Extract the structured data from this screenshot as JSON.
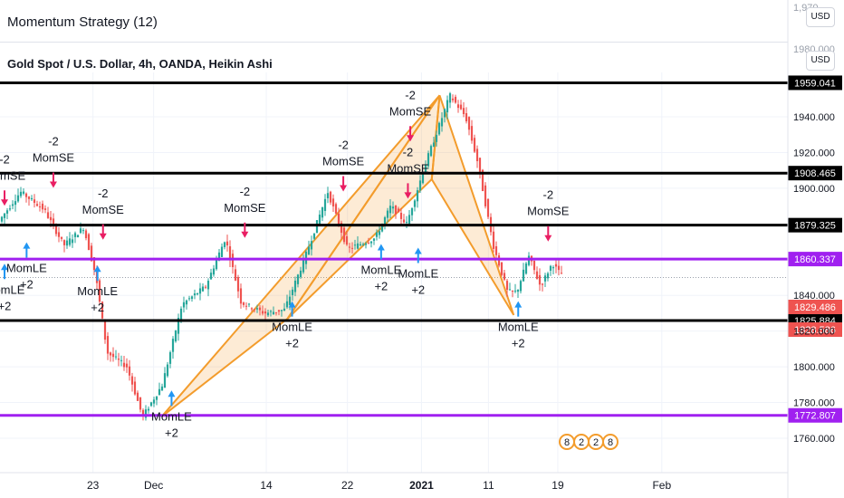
{
  "header": {
    "indicator_title": "Momentum Strategy (12)",
    "chart_title": "Gold Spot / U.S. Dollar, 4h, OANDA, Heikin Ashi",
    "currency_top": "USD",
    "currency_mid": "USD"
  },
  "colors": {
    "bull": "#26a69a",
    "bear": "#ef5350",
    "pattern": "#f39c2c",
    "purple": "#a020f0",
    "black_line": "#000000",
    "up_arrow": "#2196f3",
    "down_arrow": "#e91e63"
  },
  "chart_data": {
    "type": "candlestick",
    "title": "Gold Spot / U.S. Dollar, 4h, OANDA, Heikin Ashi",
    "y_axis": {
      "ticks": [
        1760,
        1780,
        1800,
        1820,
        1840,
        1900,
        1920,
        1940
      ],
      "tick_labels": [
        "1760.000",
        "1780.000",
        "1800.000",
        "1820.000",
        "1840.000",
        "1900.000",
        "1920.000",
        "1940.000"
      ],
      "range": [
        1746,
        1968
      ],
      "faded_labels": [
        "1,970",
        "1980.000"
      ]
    },
    "x_axis": {
      "labels": [
        "23",
        "Dec",
        "14",
        "22",
        "2021",
        "11",
        "19",
        "Feb"
      ],
      "positions": [
        0.118,
        0.195,
        0.338,
        0.441,
        0.535,
        0.62,
        0.708,
        0.84
      ]
    },
    "horizontal_levels": [
      {
        "value": 1959.041,
        "label": "1959.041",
        "color": "#000000"
      },
      {
        "value": 1908.465,
        "label": "1908.465",
        "color": "#000000"
      },
      {
        "value": 1879.325,
        "label": "1879.325",
        "color": "#000000"
      },
      {
        "value": 1860.337,
        "label": "1860.337",
        "color": "#a020f0"
      },
      {
        "value": 1825.884,
        "label": "1825.884",
        "color": "#000000"
      },
      {
        "value": 1772.807,
        "label": "1772.807",
        "color": "#a020f0"
      }
    ],
    "price_tags": [
      {
        "value": 1829.486,
        "label": "1829.486",
        "color": "#ef5350"
      },
      {
        "value": 1828.586,
        "label": "1828.586",
        "color": "#ef5350"
      }
    ],
    "annotations_short": [
      {
        "line1": "-2",
        "line2": "MomSE",
        "x": 0.0,
        "price": 1914
      },
      {
        "line1": "-2",
        "line2": "MomSE",
        "x": 0.062,
        "price": 1924
      },
      {
        "line1": "-2",
        "line2": "MomSE",
        "x": 0.125,
        "price": 1895
      },
      {
        "line1": "-2",
        "line2": "MomSE",
        "x": 0.305,
        "price": 1896
      },
      {
        "line1": "-2",
        "line2": "MomSE",
        "x": 0.43,
        "price": 1922
      },
      {
        "line1": "-2",
        "line2": "MomSE",
        "x": 0.515,
        "price": 1950
      },
      {
        "line1": "-2",
        "line2": "MomSE",
        "x": 0.512,
        "price": 1918
      },
      {
        "line1": "-2",
        "line2": "MomSE",
        "x": 0.69,
        "price": 1894
      }
    ],
    "annotations_long": [
      {
        "line1": "MomLE",
        "line2": "+2",
        "x": 0.028,
        "price": 1853
      },
      {
        "line1": "MomLE",
        "line2": "+2",
        "x": 0.0,
        "price": 1841
      },
      {
        "line1": "MomLE",
        "line2": "+2",
        "x": 0.118,
        "price": 1840
      },
      {
        "line1": "MomLE",
        "line2": "+2",
        "x": 0.365,
        "price": 1820
      },
      {
        "line1": "MomLE",
        "line2": "+2",
        "x": 0.478,
        "price": 1852
      },
      {
        "line1": "MomLE",
        "line2": "+2",
        "x": 0.525,
        "price": 1850
      },
      {
        "line1": "MomLE",
        "line2": "+2",
        "x": 0.652,
        "price": 1820
      },
      {
        "line1": "MomLE",
        "line2": "+2",
        "x": 0.212,
        "price": 1770
      }
    ],
    "calendar_badges": [
      "8",
      "2",
      "2",
      "8"
    ]
  }
}
